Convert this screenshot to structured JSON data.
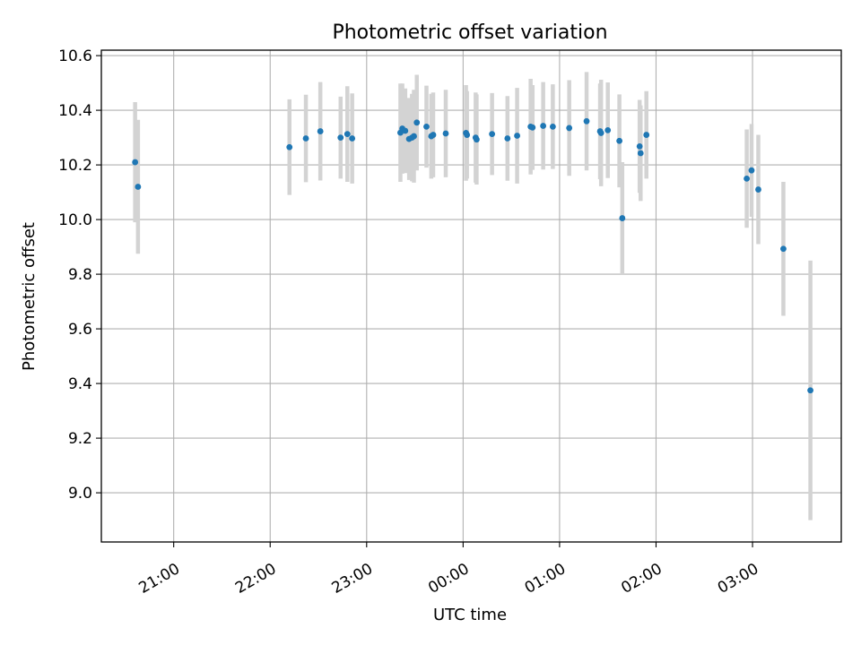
{
  "chart_data": {
    "type": "scatter",
    "title": "Photometric offset variation",
    "xlabel": "UTC time",
    "ylabel": "Photometric offset",
    "x_unit": "hours since 00:00 UTC",
    "xlim": [
      -3.75,
      3.92
    ],
    "ylim": [
      8.82,
      10.62
    ],
    "grid": true,
    "x_ticks": [
      {
        "value": -3,
        "label": "21:00"
      },
      {
        "value": -2,
        "label": "22:00"
      },
      {
        "value": -1,
        "label": "23:00"
      },
      {
        "value": 0,
        "label": "00:00"
      },
      {
        "value": 1,
        "label": "01:00"
      },
      {
        "value": 2,
        "label": "02:00"
      },
      {
        "value": 3,
        "label": "03:00"
      }
    ],
    "y_ticks": [
      {
        "value": 9.0,
        "label": "9.0"
      },
      {
        "value": 9.2,
        "label": "9.2"
      },
      {
        "value": 9.4,
        "label": "9.4"
      },
      {
        "value": 9.6,
        "label": "9.6"
      },
      {
        "value": 9.8,
        "label": "9.8"
      },
      {
        "value": 10.0,
        "label": "10.0"
      },
      {
        "value": 10.2,
        "label": "10.2"
      },
      {
        "value": 10.4,
        "label": "10.4"
      },
      {
        "value": 10.6,
        "label": "10.6"
      }
    ],
    "point_color": "#1f77b4",
    "errorbar_color": "#d3d3d3",
    "points": [
      {
        "x": -3.4,
        "y": 10.21,
        "yerr": 0.22
      },
      {
        "x": -3.37,
        "y": 10.12,
        "yerr": 0.245
      },
      {
        "x": -1.8,
        "y": 10.265,
        "yerr": 0.175
      },
      {
        "x": -1.63,
        "y": 10.297,
        "yerr": 0.16
      },
      {
        "x": -1.48,
        "y": 10.323,
        "yerr": 0.18
      },
      {
        "x": -1.27,
        "y": 10.3,
        "yerr": 0.15
      },
      {
        "x": -1.2,
        "y": 10.313,
        "yerr": 0.175
      },
      {
        "x": -1.15,
        "y": 10.297,
        "yerr": 0.165
      },
      {
        "x": -0.65,
        "y": 10.318,
        "yerr": 0.18
      },
      {
        "x": -0.63,
        "y": 10.333,
        "yerr": 0.165
      },
      {
        "x": -0.6,
        "y": 10.325,
        "yerr": 0.155
      },
      {
        "x": -0.56,
        "y": 10.295,
        "yerr": 0.15
      },
      {
        "x": -0.53,
        "y": 10.3,
        "yerr": 0.16
      },
      {
        "x": -0.51,
        "y": 10.305,
        "yerr": 0.17
      },
      {
        "x": -0.48,
        "y": 10.355,
        "yerr": 0.175
      },
      {
        "x": -0.38,
        "y": 10.34,
        "yerr": 0.15
      },
      {
        "x": -0.33,
        "y": 10.305,
        "yerr": 0.155
      },
      {
        "x": -0.31,
        "y": 10.31,
        "yerr": 0.155
      },
      {
        "x": -0.18,
        "y": 10.315,
        "yerr": 0.16
      },
      {
        "x": 0.03,
        "y": 10.317,
        "yerr": 0.175
      },
      {
        "x": 0.04,
        "y": 10.31,
        "yerr": 0.16
      },
      {
        "x": 0.13,
        "y": 10.3,
        "yerr": 0.165
      },
      {
        "x": 0.14,
        "y": 10.293,
        "yerr": 0.165
      },
      {
        "x": 0.3,
        "y": 10.313,
        "yerr": 0.15
      },
      {
        "x": 0.46,
        "y": 10.297,
        "yerr": 0.155
      },
      {
        "x": 0.56,
        "y": 10.307,
        "yerr": 0.175
      },
      {
        "x": 0.7,
        "y": 10.34,
        "yerr": 0.175
      },
      {
        "x": 0.72,
        "y": 10.337,
        "yerr": 0.155
      },
      {
        "x": 0.83,
        "y": 10.343,
        "yerr": 0.16
      },
      {
        "x": 0.93,
        "y": 10.34,
        "yerr": 0.155
      },
      {
        "x": 1.1,
        "y": 10.335,
        "yerr": 0.175
      },
      {
        "x": 1.28,
        "y": 10.36,
        "yerr": 0.18
      },
      {
        "x": 1.42,
        "y": 10.323,
        "yerr": 0.175
      },
      {
        "x": 1.43,
        "y": 10.317,
        "yerr": 0.195
      },
      {
        "x": 1.5,
        "y": 10.327,
        "yerr": 0.175
      },
      {
        "x": 1.62,
        "y": 10.288,
        "yerr": 0.17
      },
      {
        "x": 1.65,
        "y": 10.005,
        "yerr": 0.205
      },
      {
        "x": 1.83,
        "y": 10.268,
        "yerr": 0.17
      },
      {
        "x": 1.84,
        "y": 10.243,
        "yerr": 0.175
      },
      {
        "x": 1.9,
        "y": 10.31,
        "yerr": 0.16
      },
      {
        "x": 2.94,
        "y": 10.15,
        "yerr": 0.18
      },
      {
        "x": 2.99,
        "y": 10.18,
        "yerr": 0.17
      },
      {
        "x": 3.06,
        "y": 10.11,
        "yerr": 0.2
      },
      {
        "x": 3.32,
        "y": 9.893,
        "yerr": 0.245
      },
      {
        "x": 3.6,
        "y": 9.375,
        "yerr": 0.475
      }
    ]
  }
}
